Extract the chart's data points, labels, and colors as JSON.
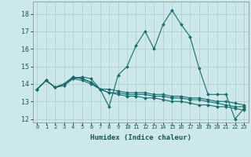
{
  "xlabel": "Humidex (Indice chaleur)",
  "background_color": "#cce8ea",
  "grid_color": "#aacccc",
  "line_color": "#1a6b6b",
  "x_values": [
    0,
    1,
    2,
    3,
    4,
    5,
    6,
    7,
    8,
    9,
    10,
    11,
    12,
    13,
    14,
    15,
    16,
    17,
    18,
    19,
    20,
    21,
    22,
    23
  ],
  "series": [
    [
      13.7,
      14.2,
      13.8,
      13.9,
      14.3,
      14.4,
      14.3,
      13.7,
      12.7,
      14.5,
      15.0,
      16.2,
      17.0,
      16.0,
      17.4,
      18.2,
      17.4,
      16.7,
      14.9,
      13.4,
      13.4,
      13.4,
      12.0,
      12.6
    ],
    [
      13.7,
      14.2,
      13.8,
      14.0,
      14.3,
      14.2,
      14.0,
      13.7,
      13.7,
      13.6,
      13.5,
      13.5,
      13.5,
      13.4,
      13.4,
      13.3,
      13.3,
      13.2,
      13.2,
      13.1,
      13.0,
      13.0,
      12.9,
      12.8
    ],
    [
      13.7,
      14.2,
      13.8,
      14.0,
      14.4,
      14.3,
      14.1,
      13.7,
      13.5,
      13.5,
      13.4,
      13.4,
      13.4,
      13.3,
      13.3,
      13.2,
      13.2,
      13.1,
      13.1,
      13.0,
      12.9,
      12.8,
      12.7,
      12.7
    ],
    [
      13.7,
      14.2,
      13.8,
      14.0,
      14.4,
      14.3,
      14.1,
      13.7,
      13.5,
      13.4,
      13.3,
      13.3,
      13.2,
      13.2,
      13.1,
      13.0,
      13.0,
      12.9,
      12.8,
      12.8,
      12.7,
      12.7,
      12.6,
      12.5
    ]
  ],
  "ylim": [
    11.8,
    18.7
  ],
  "yticks": [
    12,
    13,
    14,
    15,
    16,
    17,
    18
  ],
  "xlim": [
    -0.5,
    23.5
  ],
  "marker": "D",
  "markersize": 2.0,
  "linewidth": 0.8
}
